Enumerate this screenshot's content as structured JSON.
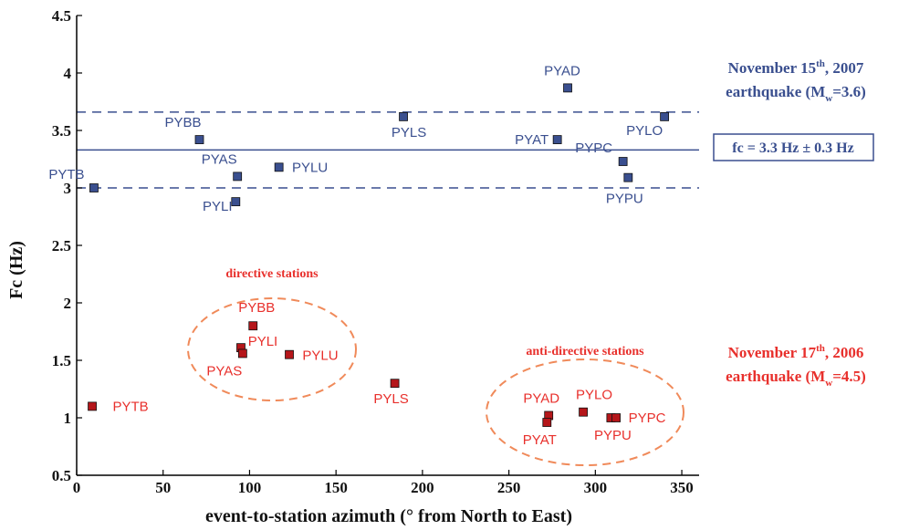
{
  "chart_data": {
    "type": "scatter",
    "title": "",
    "xlabel": "event-to-station azimuth (° from North to East)",
    "ylabel": "Fc (Hz)",
    "xlim": [
      0,
      360
    ],
    "ylim": [
      0.5,
      4.5
    ],
    "xticks": [
      0,
      50,
      100,
      150,
      200,
      250,
      300,
      350
    ],
    "yticks": [
      "0.5",
      "1",
      "1.5",
      "2",
      "2.5",
      "3",
      "3.5",
      "4",
      "4.5"
    ],
    "grid": false,
    "series": [
      {
        "name": "November 15th, 2007 earthquake (Mw=3.6)",
        "color": "#3a4f8f",
        "label_color": "#3a4f8f",
        "points": [
          {
            "station": "PYTB",
            "x": 10,
            "y": 3.0
          },
          {
            "station": "PYBB",
            "x": 71,
            "y": 3.42
          },
          {
            "station": "PYAS",
            "x": 93,
            "y": 3.1
          },
          {
            "station": "PYLI",
            "x": 92,
            "y": 2.88
          },
          {
            "station": "PYLU",
            "x": 117,
            "y": 3.18
          },
          {
            "station": "PYLS",
            "x": 189,
            "y": 3.62
          },
          {
            "station": "PYAD",
            "x": 284,
            "y": 3.87
          },
          {
            "station": "PYAT",
            "x": 278,
            "y": 3.42
          },
          {
            "station": "PYPC",
            "x": 316,
            "y": 3.23
          },
          {
            "station": "PYPU",
            "x": 319,
            "y": 3.09
          },
          {
            "station": "PYLO",
            "x": 340,
            "y": 3.62
          }
        ]
      },
      {
        "name": "November 17th, 2006 earthquake (Mw=4.5)",
        "color": "#b5161a",
        "label_color": "#e8302c",
        "points": [
          {
            "station": "PYTB",
            "x": 9,
            "y": 1.1
          },
          {
            "station": "PYBB",
            "x": 102,
            "y": 1.8
          },
          {
            "station": "PYLI",
            "x": 95,
            "y": 1.61
          },
          {
            "station": "PYAS",
            "x": 96,
            "y": 1.56
          },
          {
            "station": "PYLU",
            "x": 123,
            "y": 1.55
          },
          {
            "station": "PYLS",
            "x": 184,
            "y": 1.3
          },
          {
            "station": "PYAD",
            "x": 273,
            "y": 1.02
          },
          {
            "station": "PYAT",
            "x": 272,
            "y": 0.96
          },
          {
            "station": "PYLO",
            "x": 293,
            "y": 1.05
          },
          {
            "station": "PYPU",
            "x": 309,
            "y": 1.0
          },
          {
            "station": "PYPC",
            "x": 312,
            "y": 1.0
          }
        ]
      }
    ],
    "reference_lines": [
      {
        "y": 3.33,
        "style": "solid",
        "color": "#3a4f8f"
      },
      {
        "y": 3.66,
        "style": "dashed",
        "color": "#3a4f8f"
      },
      {
        "y": 3.0,
        "style": "dashed",
        "color": "#3a4f8f"
      }
    ],
    "annotations": {
      "directive_group": "directive stations",
      "antidirective_group": "anti-directive stations",
      "fc_box": "fc = 3.3 Hz ± 0.3 Hz",
      "quake_2007": {
        "line1_a": "November 15",
        "line1_sup": "th",
        "line1_b": ", 2007",
        "line2_a": "earthquake (M",
        "line2_sub": "w",
        "line2_b": "=3.6)"
      },
      "quake_2006": {
        "line1_a": "November 17",
        "line1_sup": "th",
        "line1_b": ", 2006",
        "line2_a": "earthquake (M",
        "line2_sub": "w",
        "line2_b": "=4.5)"
      }
    },
    "colors": {
      "blue": "#3a4f8f",
      "red": "#e8302c",
      "ellipse": "#f08a5a"
    }
  }
}
